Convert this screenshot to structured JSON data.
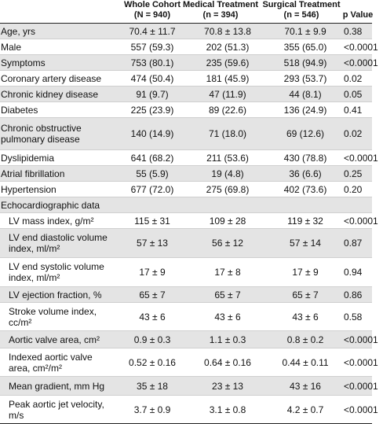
{
  "header": {
    "col_whole": "Whole Cohort",
    "col_whole_n": "(N = 940)",
    "col_medical": "Medical Treatment",
    "col_medical_n": "(n = 394)",
    "col_surgical": "Surgical Treatment",
    "col_surgical_n": "(n = 546)",
    "col_p": "p Value"
  },
  "rows": [
    {
      "label": "Age, yrs",
      "whole": "70.4 ± 11.7",
      "medical": "70.8 ± 13.8",
      "surgical": "70.1 ± 9.9",
      "p": "0.38"
    },
    {
      "label": "Male",
      "whole": "557 (59.3)",
      "medical": "202 (51.3)",
      "surgical": "355 (65.0)",
      "p": "<0.0001"
    },
    {
      "label": "Symptoms",
      "whole": "753 (80.1)",
      "medical": "235 (59.6)",
      "surgical": "518 (94.9)",
      "p": "<0.0001"
    },
    {
      "label": "Coronary artery disease",
      "whole": "474 (50.4)",
      "medical": "181 (45.9)",
      "surgical": "293 (53.7)",
      "p": "0.02"
    },
    {
      "label": "Chronic kidney disease",
      "whole": "91 (9.7)",
      "medical": "47 (11.9)",
      "surgical": "44 (8.1)",
      "p": "0.05"
    },
    {
      "label": "Diabetes",
      "whole": "225 (23.9)",
      "medical": "89 (22.6)",
      "surgical": "136 (24.9)",
      "p": "0.41"
    },
    {
      "label": "Chronic obstructive pulmonary disease",
      "whole": "140 (14.9)",
      "medical": "71 (18.0)",
      "surgical": "69 (12.6)",
      "p": "0.02"
    },
    {
      "label": "Dyslipidemia",
      "whole": "641 (68.2)",
      "medical": "211 (53.6)",
      "surgical": "430 (78.8)",
      "p": "<0.0001"
    },
    {
      "label": "Atrial fibrillation",
      "whole": "55 (5.9)",
      "medical": "19 (4.8)",
      "surgical": "36 (6.6)",
      "p": "0.25"
    },
    {
      "label": "Hypertension",
      "whole": "677 (72.0)",
      "medical": "275 (69.8)",
      "surgical": "402 (73.6)",
      "p": "0.20"
    },
    {
      "label": "Echocardiographic data",
      "whole": "",
      "medical": "",
      "surgical": "",
      "p": ""
    },
    {
      "label": "LV mass index, g/m²",
      "whole": "115 ± 31",
      "medical": "109 ± 28",
      "surgical": "119 ± 32",
      "p": "<0.0001"
    },
    {
      "label": "LV end diastolic volume index, ml/m²",
      "whole": "57 ± 13",
      "medical": "56 ± 12",
      "surgical": "57 ± 14",
      "p": "0.87"
    },
    {
      "label": "LV end systolic volume index, ml/m²",
      "whole": "17 ± 9",
      "medical": "17 ± 8",
      "surgical": "17 ± 9",
      "p": "0.94"
    },
    {
      "label": "LV ejection fraction, %",
      "whole": "65 ± 7",
      "medical": "65 ± 7",
      "surgical": "65 ± 7",
      "p": "0.86"
    },
    {
      "label": "Stroke volume index, cc/m²",
      "whole": "43 ± 6",
      "medical": "43 ± 6",
      "surgical": "43 ± 6",
      "p": "0.58"
    },
    {
      "label": "Aortic valve area, cm²",
      "whole": "0.9 ± 0.3",
      "medical": "1.1 ± 0.3",
      "surgical": "0.8 ± 0.2",
      "p": "<0.0001"
    },
    {
      "label": "Indexed aortic valve area, cm²/m²",
      "whole": "0.52 ± 0.16",
      "medical": "0.64 ± 0.16",
      "surgical": "0.44 ± 0.11",
      "p": "<0.0001"
    },
    {
      "label": "Mean gradient, mm Hg",
      "whole": "35 ± 18",
      "medical": "23 ± 13",
      "surgical": "43 ± 16",
      "p": "<0.0001"
    },
    {
      "label": "Peak aortic jet velocity, m/s",
      "whole": "3.7 ± 0.9",
      "medical": "3.1 ± 0.8",
      "surgical": "4.2 ± 0.7",
      "p": "<0.0001"
    }
  ]
}
